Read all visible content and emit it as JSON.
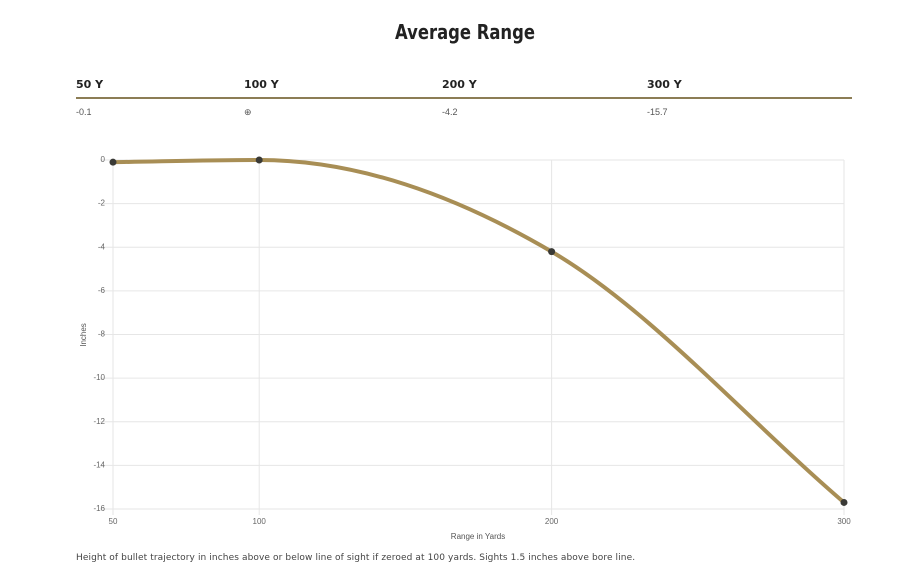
{
  "title": "Average Range",
  "range_table": {
    "headers": [
      "50 Y",
      "100 Y",
      "200 Y",
      "300 Y"
    ],
    "values": [
      "-0.1",
      "⊕",
      "-4.2",
      "-15.7"
    ]
  },
  "caption": "Height of bullet trajectory in inches above or below line of sight if zeroed at 100 yards. Sights 1.5 inches above bore line.",
  "colors": {
    "line": "#a88e55",
    "point": "#3a3a36",
    "rule": "#8c7d55",
    "grid": "#e6e6e6"
  },
  "chart_data": {
    "type": "line",
    "title": "",
    "xlabel": "Range in Yards",
    "ylabel": "Inches",
    "x_ticks": [
      "50",
      "100",
      "200",
      "300"
    ],
    "y_ticks": [
      "0",
      "-2",
      "-4",
      "-6",
      "-8",
      "-10",
      "-12",
      "-14",
      "-16"
    ],
    "xlim": [
      50,
      300
    ],
    "ylim": [
      -16,
      0
    ],
    "grid": true,
    "series": [
      {
        "x": [
          50,
          100,
          200,
          300
        ],
        "y": [
          -0.1,
          0,
          -4.2,
          -15.7
        ]
      }
    ]
  }
}
